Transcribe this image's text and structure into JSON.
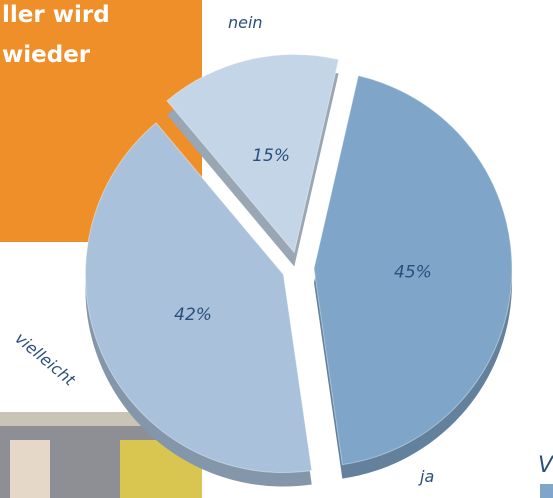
{
  "chart_data": {
    "type": "pie",
    "categories": [
      "nein",
      "ja",
      "vielleicht"
    ],
    "values": [
      15,
      45,
      42
    ],
    "value_labels": [
      "15%",
      "45%",
      "42%"
    ],
    "colors": [
      "#c4d5e7",
      "#7fa6c9",
      "#a9c1da"
    ],
    "annotations": [
      "ller wird",
      "wieder",
      "V"
    ]
  }
}
